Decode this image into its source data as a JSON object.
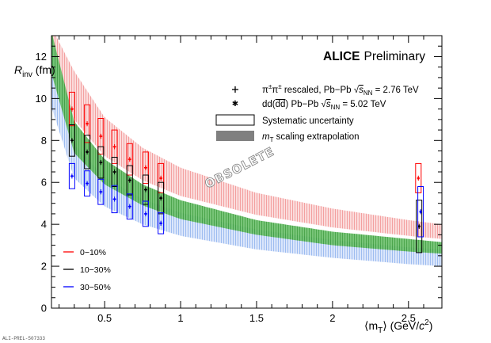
{
  "chart_data": {
    "type": "scatter",
    "title": "",
    "experiment_label": "ALICE",
    "experiment_status": "Preliminary",
    "watermark": "OBSOLETE",
    "reference": "ALI-PREL-507333",
    "xlabel": {
      "main": "⟨m",
      "sub": "T",
      "tail": "⟩ (GeV/",
      "c": "c",
      "sup": "2",
      "close": ")"
    },
    "ylabel": {
      "main": "R",
      "sub": "inv",
      "tail": " (fm)"
    },
    "xlim": [
      0.15,
      2.72
    ],
    "ylim": [
      0,
      13
    ],
    "xticks": [
      0.5,
      1,
      1.5,
      2,
      2.5
    ],
    "xtick_labels": [
      "0.5",
      "1",
      "1.5",
      "2",
      "2.5"
    ],
    "yticks": [
      0,
      2,
      4,
      6,
      8,
      10,
      12
    ],
    "ytick_labels": [
      "0",
      "2",
      "4",
      "6",
      "8",
      "10",
      "12"
    ],
    "legend": [
      {
        "text": "π±π± rescaled, Pb−Pb √sNN = 2.76 TeV",
        "main": "π",
        "sup1": "±",
        "main2": "π",
        "sup2": "±",
        "rest": " rescaled, Pb−Pb ",
        "rad": "√",
        "s": "s",
        "s_sub": "NN",
        "eq": " = 2.76 TeV",
        "marker": "cross"
      },
      {
        "text": "dd(dd) Pb−Pb √sNN = 5.02 TeV",
        "main": "dd(",
        "bar": "dd",
        "close": ") Pb−Pb ",
        "rad": "√",
        "s": "s",
        "s_sub": "NN",
        "eq": " = 5.02 TeV",
        "marker": "star"
      },
      {
        "text": "Systematic uncertainty",
        "marker": "open-box"
      },
      {
        "text": "mT scaling extrapolation",
        "m": "m",
        "m_sub": "T",
        "rest": " scaling extrapolation",
        "marker": "filled-box"
      }
    ],
    "centrality_legend": [
      "0−10%",
      "10−30%",
      "30−50%"
    ],
    "colors": {
      "c0_10": "#ff0000",
      "c10_30": "#000000",
      "c30_50": "#0000ff",
      "band_red": "#f7b5b5",
      "band_green": "#5cb85c",
      "band_blue": "#b3ccf5",
      "band_grey": "#808080"
    },
    "bands": [
      {
        "name": "0-10%",
        "color": "#f7b5b5",
        "lower": [
          [
            0.15,
            12.0
          ],
          [
            0.3,
            9.0
          ],
          [
            0.5,
            7.25
          ],
          [
            0.75,
            6.1
          ],
          [
            1.0,
            5.35
          ],
          [
            1.5,
            4.45
          ],
          [
            2.0,
            3.85
          ],
          [
            2.5,
            3.45
          ],
          [
            2.72,
            3.3
          ]
        ],
        "upper": [
          [
            0.15,
            13.4
          ],
          [
            0.3,
            11.3
          ],
          [
            0.5,
            9.1
          ],
          [
            0.75,
            7.65
          ],
          [
            1.0,
            6.7
          ],
          [
            1.5,
            5.5
          ],
          [
            2.0,
            4.75
          ],
          [
            2.5,
            4.2
          ],
          [
            2.72,
            4.0
          ]
        ]
      },
      {
        "name": "30-50%",
        "color": "#b3ccf5",
        "lower": [
          [
            0.15,
            9.6
          ],
          [
            0.3,
            6.2
          ],
          [
            0.5,
            4.85
          ],
          [
            0.75,
            4.0
          ],
          [
            1.0,
            3.45
          ],
          [
            1.5,
            2.8
          ],
          [
            2.0,
            2.4
          ],
          [
            2.5,
            2.1
          ],
          [
            2.72,
            2.0
          ]
        ],
        "upper": [
          [
            0.15,
            13.0
          ],
          [
            0.3,
            7.8
          ],
          [
            0.5,
            6.25
          ],
          [
            0.75,
            5.2
          ],
          [
            1.0,
            4.55
          ],
          [
            1.5,
            3.75
          ],
          [
            2.0,
            3.25
          ],
          [
            2.5,
            2.9
          ],
          [
            2.72,
            2.8
          ]
        ]
      },
      {
        "name": "10-30%",
        "color": "#5cb85c",
        "lower": [
          [
            0.15,
            11.2
          ],
          [
            0.3,
            7.4
          ],
          [
            0.5,
            5.9
          ],
          [
            0.75,
            4.9
          ],
          [
            1.0,
            4.25
          ],
          [
            1.5,
            3.5
          ],
          [
            2.0,
            3.0
          ],
          [
            2.5,
            2.7
          ],
          [
            2.72,
            2.6
          ]
        ],
        "upper": [
          [
            0.15,
            13.2
          ],
          [
            0.3,
            8.9
          ],
          [
            0.5,
            7.1
          ],
          [
            0.75,
            5.9
          ],
          [
            1.0,
            5.15
          ],
          [
            1.5,
            4.2
          ],
          [
            2.0,
            3.65
          ],
          [
            2.5,
            3.3
          ],
          [
            2.72,
            3.15
          ]
        ]
      }
    ],
    "series": [
      {
        "name": "π±π± 0−10%",
        "color": "#ff0000",
        "marker": "cross",
        "points": [
          [
            0.285,
            9.5,
            0.8
          ],
          [
            0.385,
            8.8,
            0.9
          ],
          [
            0.475,
            8.2,
            0.85
          ],
          [
            0.565,
            7.7,
            0.8
          ],
          [
            0.665,
            7.1,
            0.75
          ],
          [
            0.77,
            6.7,
            0.75
          ],
          [
            0.87,
            6.2,
            0.7
          ]
        ]
      },
      {
        "name": "π±π± 10−30%",
        "color": "#000000",
        "marker": "cross",
        "points": [
          [
            0.285,
            8.0,
            0.75
          ],
          [
            0.385,
            7.45,
            0.8
          ],
          [
            0.475,
            6.95,
            0.75
          ],
          [
            0.565,
            6.5,
            0.7
          ],
          [
            0.665,
            6.1,
            0.7
          ],
          [
            0.77,
            5.65,
            0.7
          ],
          [
            0.87,
            5.25,
            0.75
          ]
        ]
      },
      {
        "name": "π±π± 30−50%",
        "color": "#0000ff",
        "marker": "cross",
        "points": [
          [
            0.285,
            6.3,
            0.6
          ],
          [
            0.385,
            5.95,
            0.6
          ],
          [
            0.475,
            5.55,
            0.6
          ],
          [
            0.565,
            5.2,
            0.65
          ],
          [
            0.665,
            4.85,
            0.6
          ],
          [
            0.77,
            4.5,
            0.6
          ],
          [
            0.87,
            4.05,
            0.5
          ]
        ]
      },
      {
        "name": "dd 0−10%",
        "color": "#ff0000",
        "marker": "star",
        "points": [
          [
            2.565,
            6.2,
            0.7
          ]
        ]
      },
      {
        "name": "dd 10−30%",
        "color": "#000000",
        "marker": "star",
        "points": [
          [
            2.57,
            3.9,
            1.25
          ]
        ]
      },
      {
        "name": "dd 30−50%",
        "color": "#0000ff",
        "marker": "star",
        "points": [
          [
            2.58,
            4.6,
            1.2
          ]
        ]
      }
    ]
  }
}
